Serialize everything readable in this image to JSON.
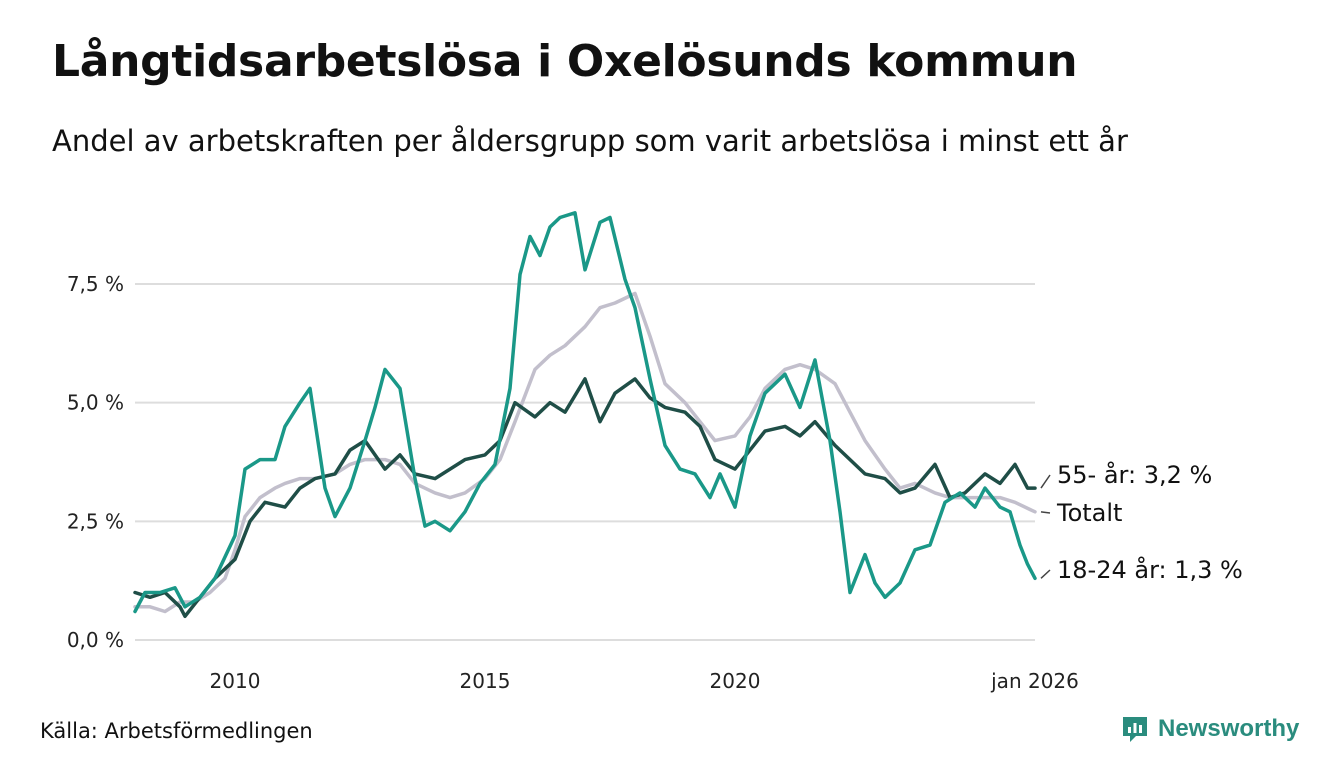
{
  "chart_data": {
    "type": "line",
    "title": "Långtidsarbetslösa i Oxelösunds kommun",
    "subtitle": "Andel av arbetskraften per åldersgrupp som varit arbetslösa i minst ett år",
    "xlabel": "",
    "ylabel": "",
    "xlim": [
      2008.0,
      2026.0
    ],
    "ylim": [
      0,
      9.2
    ],
    "y_ticks": [
      0,
      2.5,
      5.0,
      7.5
    ],
    "y_tick_labels": [
      "0,0 %",
      "2,5 %",
      "5,0 %",
      "7,5 %"
    ],
    "x_ticks": [
      2010,
      2015,
      2020,
      2026.0
    ],
    "x_tick_labels": [
      "2010",
      "2015",
      "2020",
      "jan 2026"
    ],
    "grid": "horizontal",
    "series": [
      {
        "name": "Totalt",
        "end_label": "Totalt",
        "color": "#c2bfcc",
        "points": [
          [
            2008.0,
            0.7
          ],
          [
            2008.3,
            0.7
          ],
          [
            2008.6,
            0.6
          ],
          [
            2008.9,
            0.8
          ],
          [
            2009.2,
            0.8
          ],
          [
            2009.5,
            1.0
          ],
          [
            2009.8,
            1.3
          ],
          [
            2010.0,
            1.9
          ],
          [
            2010.2,
            2.6
          ],
          [
            2010.5,
            3.0
          ],
          [
            2010.8,
            3.2
          ],
          [
            2011.0,
            3.3
          ],
          [
            2011.3,
            3.4
          ],
          [
            2011.6,
            3.4
          ],
          [
            2012.0,
            3.5
          ],
          [
            2012.3,
            3.7
          ],
          [
            2012.6,
            3.8
          ],
          [
            2013.0,
            3.8
          ],
          [
            2013.3,
            3.7
          ],
          [
            2013.6,
            3.3
          ],
          [
            2014.0,
            3.1
          ],
          [
            2014.3,
            3.0
          ],
          [
            2014.6,
            3.1
          ],
          [
            2015.0,
            3.4
          ],
          [
            2015.3,
            3.8
          ],
          [
            2015.6,
            4.6
          ],
          [
            2016.0,
            5.7
          ],
          [
            2016.3,
            6.0
          ],
          [
            2016.6,
            6.2
          ],
          [
            2017.0,
            6.6
          ],
          [
            2017.3,
            7.0
          ],
          [
            2017.6,
            7.1
          ],
          [
            2018.0,
            7.3
          ],
          [
            2018.3,
            6.4
          ],
          [
            2018.6,
            5.4
          ],
          [
            2019.0,
            5.0
          ],
          [
            2019.3,
            4.6
          ],
          [
            2019.6,
            4.2
          ],
          [
            2020.0,
            4.3
          ],
          [
            2020.3,
            4.7
          ],
          [
            2020.6,
            5.3
          ],
          [
            2021.0,
            5.7
          ],
          [
            2021.3,
            5.8
          ],
          [
            2021.6,
            5.7
          ],
          [
            2022.0,
            5.4
          ],
          [
            2022.3,
            4.8
          ],
          [
            2022.6,
            4.2
          ],
          [
            2023.0,
            3.6
          ],
          [
            2023.3,
            3.2
          ],
          [
            2023.6,
            3.3
          ],
          [
            2024.0,
            3.1
          ],
          [
            2024.3,
            3.0
          ],
          [
            2024.6,
            3.0
          ],
          [
            2025.0,
            3.0
          ],
          [
            2025.3,
            3.0
          ],
          [
            2025.6,
            2.9
          ],
          [
            2025.9,
            2.75
          ],
          [
            2026.0,
            2.7
          ]
        ]
      },
      {
        "name": "55- år",
        "end_label": "55- år: 3,2 %",
        "color": "#1f4e47",
        "points": [
          [
            2008.0,
            1.0
          ],
          [
            2008.3,
            0.9
          ],
          [
            2008.6,
            1.0
          ],
          [
            2008.9,
            0.7
          ],
          [
            2009.0,
            0.5
          ],
          [
            2009.3,
            0.9
          ],
          [
            2009.6,
            1.3
          ],
          [
            2010.0,
            1.7
          ],
          [
            2010.3,
            2.5
          ],
          [
            2010.6,
            2.9
          ],
          [
            2011.0,
            2.8
          ],
          [
            2011.3,
            3.2
          ],
          [
            2011.6,
            3.4
          ],
          [
            2012.0,
            3.5
          ],
          [
            2012.3,
            4.0
          ],
          [
            2012.6,
            4.2
          ],
          [
            2013.0,
            3.6
          ],
          [
            2013.3,
            3.9
          ],
          [
            2013.6,
            3.5
          ],
          [
            2014.0,
            3.4
          ],
          [
            2014.3,
            3.6
          ],
          [
            2014.6,
            3.8
          ],
          [
            2015.0,
            3.9
          ],
          [
            2015.3,
            4.2
          ],
          [
            2015.6,
            5.0
          ],
          [
            2016.0,
            4.7
          ],
          [
            2016.3,
            5.0
          ],
          [
            2016.6,
            4.8
          ],
          [
            2017.0,
            5.5
          ],
          [
            2017.3,
            4.6
          ],
          [
            2017.6,
            5.2
          ],
          [
            2018.0,
            5.5
          ],
          [
            2018.3,
            5.1
          ],
          [
            2018.6,
            4.9
          ],
          [
            2019.0,
            4.8
          ],
          [
            2019.3,
            4.5
          ],
          [
            2019.6,
            3.8
          ],
          [
            2020.0,
            3.6
          ],
          [
            2020.3,
            4.0
          ],
          [
            2020.6,
            4.4
          ],
          [
            2021.0,
            4.5
          ],
          [
            2021.3,
            4.3
          ],
          [
            2021.6,
            4.6
          ],
          [
            2022.0,
            4.1
          ],
          [
            2022.3,
            3.8
          ],
          [
            2022.6,
            3.5
          ],
          [
            2023.0,
            3.4
          ],
          [
            2023.3,
            3.1
          ],
          [
            2023.6,
            3.2
          ],
          [
            2024.0,
            3.7
          ],
          [
            2024.3,
            3.0
          ],
          [
            2024.6,
            3.1
          ],
          [
            2025.0,
            3.5
          ],
          [
            2025.3,
            3.3
          ],
          [
            2025.6,
            3.7
          ],
          [
            2025.85,
            3.2
          ],
          [
            2026.0,
            3.2
          ]
        ]
      },
      {
        "name": "18-24 år",
        "end_label": "18-24 år: 1,3 %",
        "color": "#1a9888",
        "points": [
          [
            2008.0,
            0.6
          ],
          [
            2008.2,
            1.0
          ],
          [
            2008.5,
            1.0
          ],
          [
            2008.8,
            1.1
          ],
          [
            2009.0,
            0.7
          ],
          [
            2009.3,
            0.9
          ],
          [
            2009.6,
            1.3
          ],
          [
            2010.0,
            2.2
          ],
          [
            2010.2,
            3.6
          ],
          [
            2010.5,
            3.8
          ],
          [
            2010.8,
            3.8
          ],
          [
            2011.0,
            4.5
          ],
          [
            2011.3,
            5.0
          ],
          [
            2011.5,
            5.3
          ],
          [
            2011.8,
            3.2
          ],
          [
            2012.0,
            2.6
          ],
          [
            2012.3,
            3.2
          ],
          [
            2012.6,
            4.2
          ],
          [
            2012.8,
            4.9
          ],
          [
            2013.0,
            5.7
          ],
          [
            2013.3,
            5.3
          ],
          [
            2013.6,
            3.4
          ],
          [
            2013.8,
            2.4
          ],
          [
            2014.0,
            2.5
          ],
          [
            2014.3,
            2.3
          ],
          [
            2014.6,
            2.7
          ],
          [
            2014.9,
            3.3
          ],
          [
            2015.2,
            3.7
          ],
          [
            2015.5,
            5.3
          ],
          [
            2015.7,
            7.7
          ],
          [
            2015.9,
            8.5
          ],
          [
            2016.1,
            8.1
          ],
          [
            2016.3,
            8.7
          ],
          [
            2016.5,
            8.9
          ],
          [
            2016.8,
            9.0
          ],
          [
            2017.0,
            7.8
          ],
          [
            2017.3,
            8.8
          ],
          [
            2017.5,
            8.9
          ],
          [
            2017.8,
            7.6
          ],
          [
            2018.0,
            7.0
          ],
          [
            2018.3,
            5.5
          ],
          [
            2018.6,
            4.1
          ],
          [
            2018.9,
            3.6
          ],
          [
            2019.2,
            3.5
          ],
          [
            2019.5,
            3.0
          ],
          [
            2019.7,
            3.5
          ],
          [
            2020.0,
            2.8
          ],
          [
            2020.3,
            4.3
          ],
          [
            2020.6,
            5.2
          ],
          [
            2021.0,
            5.6
          ],
          [
            2021.3,
            4.9
          ],
          [
            2021.6,
            5.9
          ],
          [
            2021.9,
            4.2
          ],
          [
            2022.1,
            2.7
          ],
          [
            2022.3,
            1.0
          ],
          [
            2022.6,
            1.8
          ],
          [
            2022.8,
            1.2
          ],
          [
            2023.0,
            0.9
          ],
          [
            2023.3,
            1.2
          ],
          [
            2023.6,
            1.9
          ],
          [
            2023.9,
            2.0
          ],
          [
            2024.2,
            2.9
          ],
          [
            2024.5,
            3.1
          ],
          [
            2024.8,
            2.8
          ],
          [
            2025.0,
            3.2
          ],
          [
            2025.3,
            2.8
          ],
          [
            2025.5,
            2.7
          ],
          [
            2025.7,
            2.0
          ],
          [
            2025.85,
            1.6
          ],
          [
            2026.0,
            1.3
          ]
        ]
      }
    ]
  },
  "source": "Källa: Arbetsförmedlingen",
  "brand": {
    "name": "Newsworthy",
    "icon": "newsworthy-logo-icon",
    "color": "#2a8c7e"
  }
}
